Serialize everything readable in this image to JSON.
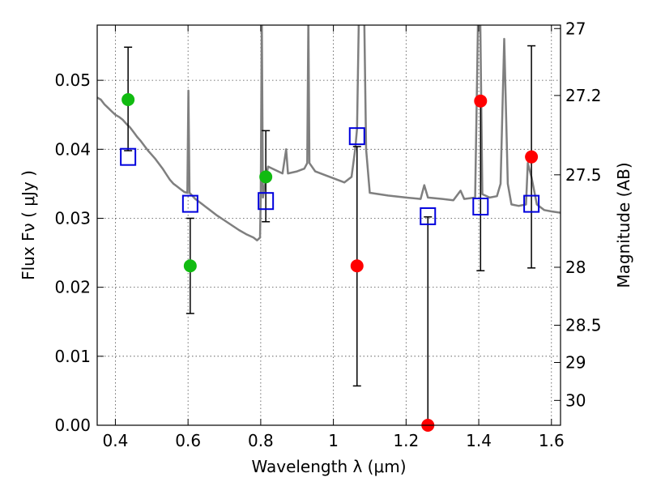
{
  "chart_data": {
    "type": "scatter",
    "xlabel": "Wavelength  λ (μm)",
    "ylabel_left": "Flux  Fν  ( μJy )",
    "ylabel_right": "Magnitude (AB)",
    "xlim": [
      0.35,
      1.625
    ],
    "ylim": [
      0.0,
      0.058
    ],
    "x_ticks": [
      0.4,
      0.6,
      0.8,
      1.0,
      1.2,
      1.4,
      1.6
    ],
    "x_tick_labels": [
      "0.4",
      "0.6",
      "0.8",
      "1",
      "1.2",
      "1.4",
      "1.6"
    ],
    "y_ticks": [
      0.0,
      0.01,
      0.02,
      0.03,
      0.04,
      0.05
    ],
    "y_tick_labels": [
      "0.00",
      "0.01",
      "0.02",
      "0.03",
      "0.04",
      "0.05"
    ],
    "right_ticks": [
      {
        "label": "27",
        "flux": 0.0575
      },
      {
        "label": "27.2",
        "flux": 0.0478
      },
      {
        "label": "27.5",
        "flux": 0.0363
      },
      {
        "label": "28",
        "flux": 0.0229
      },
      {
        "label": "28.5",
        "flux": 0.0145
      },
      {
        "label": "29",
        "flux": 0.0091
      },
      {
        "label": "30",
        "flux": 0.0036
      }
    ],
    "grid": true,
    "colors": {
      "model": "#7f7f7f",
      "green": "#11bb11",
      "red": "#ff0000",
      "square": "#0000dd",
      "errorbar": "#000000"
    },
    "series": [
      {
        "marker": "circle",
        "color": "green",
        "points": [
          {
            "x": 0.435,
            "y": 0.0472,
            "err_lo": 0.0398,
            "err_hi": 0.0548
          },
          {
            "x": 0.606,
            "y": 0.0231,
            "err_lo": 0.0162,
            "err_hi": 0.03
          },
          {
            "x": 0.814,
            "y": 0.036,
            "err_lo": 0.0295,
            "err_hi": 0.0427
          }
        ]
      },
      {
        "marker": "circle",
        "color": "red",
        "points": [
          {
            "x": 1.065,
            "y": 0.0231,
            "err_lo": 0.0057,
            "err_hi": 0.0404
          },
          {
            "x": 1.26,
            "y": 0.0,
            "err_lo": 0.0,
            "err_hi": 0.0302
          },
          {
            "x": 1.405,
            "y": 0.047,
            "err_lo": 0.0224,
            "err_hi": 0.0469
          },
          {
            "x": 1.545,
            "y": 0.0389,
            "err_lo": 0.0228,
            "err_hi": 0.055
          }
        ]
      },
      {
        "marker": "square",
        "color": "square",
        "points": [
          {
            "x": 0.435,
            "y": 0.0389
          },
          {
            "x": 0.606,
            "y": 0.0321
          },
          {
            "x": 0.814,
            "y": 0.0325
          },
          {
            "x": 1.065,
            "y": 0.0419
          },
          {
            "x": 1.26,
            "y": 0.0303
          },
          {
            "x": 1.405,
            "y": 0.0317
          },
          {
            "x": 1.545,
            "y": 0.0321
          }
        ]
      }
    ],
    "model_sed": [
      [
        0.35,
        0.0475
      ],
      [
        0.36,
        0.0472
      ],
      [
        0.37,
        0.0465
      ],
      [
        0.38,
        0.046
      ],
      [
        0.39,
        0.0455
      ],
      [
        0.4,
        0.045
      ],
      [
        0.41,
        0.0447
      ],
      [
        0.42,
        0.0443
      ],
      [
        0.43,
        0.0437
      ],
      [
        0.44,
        0.0432
      ],
      [
        0.45,
        0.0425
      ],
      [
        0.46,
        0.0418
      ],
      [
        0.47,
        0.0412
      ],
      [
        0.48,
        0.0405
      ],
      [
        0.49,
        0.0398
      ],
      [
        0.5,
        0.0392
      ],
      [
        0.51,
        0.0386
      ],
      [
        0.52,
        0.0379
      ],
      [
        0.53,
        0.0372
      ],
      [
        0.54,
        0.0364
      ],
      [
        0.55,
        0.0356
      ],
      [
        0.56,
        0.035
      ],
      [
        0.57,
        0.0346
      ],
      [
        0.58,
        0.0342
      ],
      [
        0.59,
        0.0338
      ],
      [
        0.598,
        0.0337
      ],
      [
        0.601,
        0.0485
      ],
      [
        0.604,
        0.0337
      ],
      [
        0.62,
        0.0328
      ],
      [
        0.64,
        0.032
      ],
      [
        0.66,
        0.0312
      ],
      [
        0.68,
        0.0304
      ],
      [
        0.7,
        0.0297
      ],
      [
        0.72,
        0.029
      ],
      [
        0.74,
        0.0283
      ],
      [
        0.76,
        0.0277
      ],
      [
        0.78,
        0.0272
      ],
      [
        0.79,
        0.0268
      ],
      [
        0.798,
        0.0272
      ],
      [
        0.8,
        0.033
      ],
      [
        0.803,
        0.059
      ],
      [
        0.806,
        0.033
      ],
      [
        0.82,
        0.0375
      ],
      [
        0.84,
        0.037
      ],
      [
        0.86,
        0.0365
      ],
      [
        0.87,
        0.04
      ],
      [
        0.875,
        0.0365
      ],
      [
        0.9,
        0.0368
      ],
      [
        0.92,
        0.0372
      ],
      [
        0.928,
        0.038
      ],
      [
        0.931,
        0.059
      ],
      [
        0.934,
        0.038
      ],
      [
        0.95,
        0.0368
      ],
      [
        0.98,
        0.0362
      ],
      [
        1.0,
        0.0358
      ],
      [
        1.03,
        0.0352
      ],
      [
        1.05,
        0.036
      ],
      [
        1.06,
        0.04
      ],
      [
        1.065,
        0.043
      ],
      [
        1.07,
        0.059
      ],
      [
        1.085,
        0.059
      ],
      [
        1.09,
        0.04
      ],
      [
        1.1,
        0.0337
      ],
      [
        1.15,
        0.0333
      ],
      [
        1.2,
        0.033
      ],
      [
        1.24,
        0.0328
      ],
      [
        1.25,
        0.0348
      ],
      [
        1.26,
        0.033
      ],
      [
        1.3,
        0.0328
      ],
      [
        1.33,
        0.0326
      ],
      [
        1.35,
        0.034
      ],
      [
        1.36,
        0.0328
      ],
      [
        1.39,
        0.033
      ],
      [
        1.398,
        0.059
      ],
      [
        1.404,
        0.059
      ],
      [
        1.41,
        0.0335
      ],
      [
        1.43,
        0.033
      ],
      [
        1.45,
        0.0332
      ],
      [
        1.46,
        0.035
      ],
      [
        1.47,
        0.056
      ],
      [
        1.48,
        0.035
      ],
      [
        1.49,
        0.032
      ],
      [
        1.51,
        0.0318
      ],
      [
        1.53,
        0.032
      ],
      [
        1.535,
        0.038
      ],
      [
        1.545,
        0.036
      ],
      [
        1.56,
        0.032
      ],
      [
        1.58,
        0.0312
      ],
      [
        1.6,
        0.031
      ],
      [
        1.625,
        0.0308
      ]
    ]
  }
}
